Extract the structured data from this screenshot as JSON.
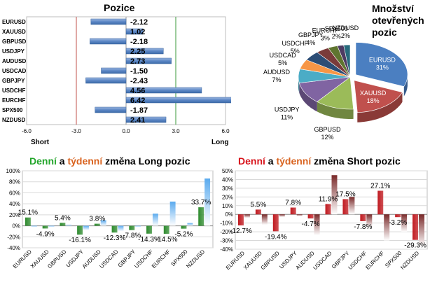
{
  "colors": {
    "bar_blue": "#5b86c4",
    "short_line": "#c0504d",
    "long_line": "#3a9a3a",
    "daily_green": "#2e8b2e",
    "weekly_blue": "#5aaaee",
    "daily_red": "#c0191f",
    "weekly_brown": "#7a2a2a",
    "word_green": "#22a52a",
    "word_orange": "#d9631f",
    "word_red": "#d8141c"
  },
  "chart_data": [
    {
      "type": "bar",
      "orientation": "horizontal",
      "title": "Pozice",
      "categories": [
        "EURUSD",
        "XAUUSD",
        "GBPUSD",
        "USDJPY",
        "AUDUSD",
        "USDCAD",
        "GBPJPY",
        "USDCHF",
        "EURCHF",
        "SPX500",
        "NZDUSD"
      ],
      "values": [
        -2.12,
        1.02,
        -2.18,
        2.25,
        2.73,
        -1.5,
        -2.43,
        4.56,
        6.42,
        -1.87,
        2.41
      ],
      "value_labels": [
        "-2.12",
        "1.02",
        "-2.18",
        "2.25",
        "2.73",
        "-1.50",
        "-2.43",
        "4.56",
        "6.42",
        "-1.87",
        "2.41"
      ],
      "xlim": [
        -6,
        6
      ],
      "xticks": [
        "-6.0",
        "-3.0",
        "0.0",
        "3.0",
        "6.0"
      ],
      "xtick_values": [
        -6,
        -3,
        0,
        3,
        6
      ],
      "short_label": "Short",
      "long_label": "Long",
      "reference_lines": [
        -3,
        3
      ]
    },
    {
      "type": "pie",
      "title": "Množství otevřených pozic",
      "title_lines": [
        "Množství",
        "otevřených",
        "pozic"
      ],
      "labels": [
        "EURUSD",
        "XAUUSD",
        "GBPUSD",
        "USDJPY",
        "AUDUSD",
        "USDCAD",
        "USDCHF",
        "GBPJPY",
        "EURCHF",
        "SPX500",
        "NZDUSD"
      ],
      "values": [
        31,
        18,
        12,
        11,
        7,
        5,
        5,
        4,
        3,
        2,
        2
      ],
      "value_labels": [
        "31%",
        "18%",
        "12%",
        "11%",
        "7%",
        "5%",
        "5%",
        "4%",
        "3%",
        "2%",
        "2%"
      ],
      "colors": [
        "#4b7fc1",
        "#c0504d",
        "#9bbb59",
        "#8064a2",
        "#4bacc6",
        "#f79646",
        "#2c4d75",
        "#7a3b3a",
        "#5f7530",
        "#4e3b62",
        "#276a7c"
      ]
    },
    {
      "type": "bar",
      "title_parts": [
        "Denní",
        " a ",
        "týdenní",
        " změna Long pozic"
      ],
      "categories": [
        "EURUSD",
        "XAUUSD",
        "GBPUSD",
        "USDJPY",
        "AUDUSD",
        "USDCAD",
        "GBPJPY",
        "USDCHF",
        "EURCHF",
        "SPX500",
        "NZDUSD"
      ],
      "series": [
        {
          "name": "Denní",
          "values": [
            15.1,
            -4.9,
            5.4,
            -16.1,
            3.8,
            -12.3,
            -7.8,
            -14.3,
            -14.5,
            -5.2,
            33.7
          ]
        },
        {
          "name": "Týdenní",
          "values": [
            -2,
            -2,
            2,
            -8,
            10,
            -10,
            -2,
            22,
            44,
            5,
            86
          ]
        }
      ],
      "value_labels": [
        "15.1%",
        "-4.9%",
        "5.4%",
        "-16.1%",
        "3.8%",
        "-12.3%",
        "-7.8%",
        "-14.3%",
        "-14.5%",
        "-5.2%",
        "33.7%"
      ],
      "ylim": [
        -40,
        100
      ],
      "yticks": [
        "-40%",
        "-20%",
        "0%",
        "20%",
        "40%",
        "60%",
        "80%",
        "100%"
      ],
      "ytick_values": [
        -40,
        -20,
        0,
        20,
        40,
        60,
        80,
        100
      ]
    },
    {
      "type": "bar",
      "title_parts": [
        "Denní",
        " a ",
        "týdenní",
        " změna Short pozic"
      ],
      "categories": [
        "EURUSD",
        "XAUUSD",
        "GBPUSD",
        "USDJPY",
        "AUDUSD",
        "USDCAD",
        "GBPJPY",
        "USDCHF",
        "EURCHF",
        "SPX500",
        "NZDUSD"
      ],
      "series": [
        {
          "name": "Denní",
          "values": [
            -12.7,
            5.5,
            -19.4,
            7.8,
            -4.7,
            11.9,
            17.5,
            -7.8,
            27.1,
            -3.2,
            -29.3
          ]
        },
        {
          "name": "Týdenní",
          "values": [
            -4,
            -12,
            -3,
            -2,
            -24,
            45,
            20,
            -15,
            -30,
            -20,
            -37
          ]
        }
      ],
      "value_labels": [
        "-12.7%",
        "5.5%",
        "-19.4%",
        "7.8%",
        "-4.7%",
        "11.9%",
        "17.5%",
        "-7.8%",
        "27.1%",
        "-3.2%",
        "-29.3%"
      ],
      "ylim": [
        -40,
        50
      ],
      "yticks": [
        "-40%",
        "-30%",
        "-20%",
        "-10%",
        "0%",
        "10%",
        "20%",
        "30%",
        "40%",
        "50%"
      ],
      "ytick_values": [
        -40,
        -30,
        -20,
        -10,
        0,
        10,
        20,
        30,
        40,
        50
      ]
    }
  ]
}
